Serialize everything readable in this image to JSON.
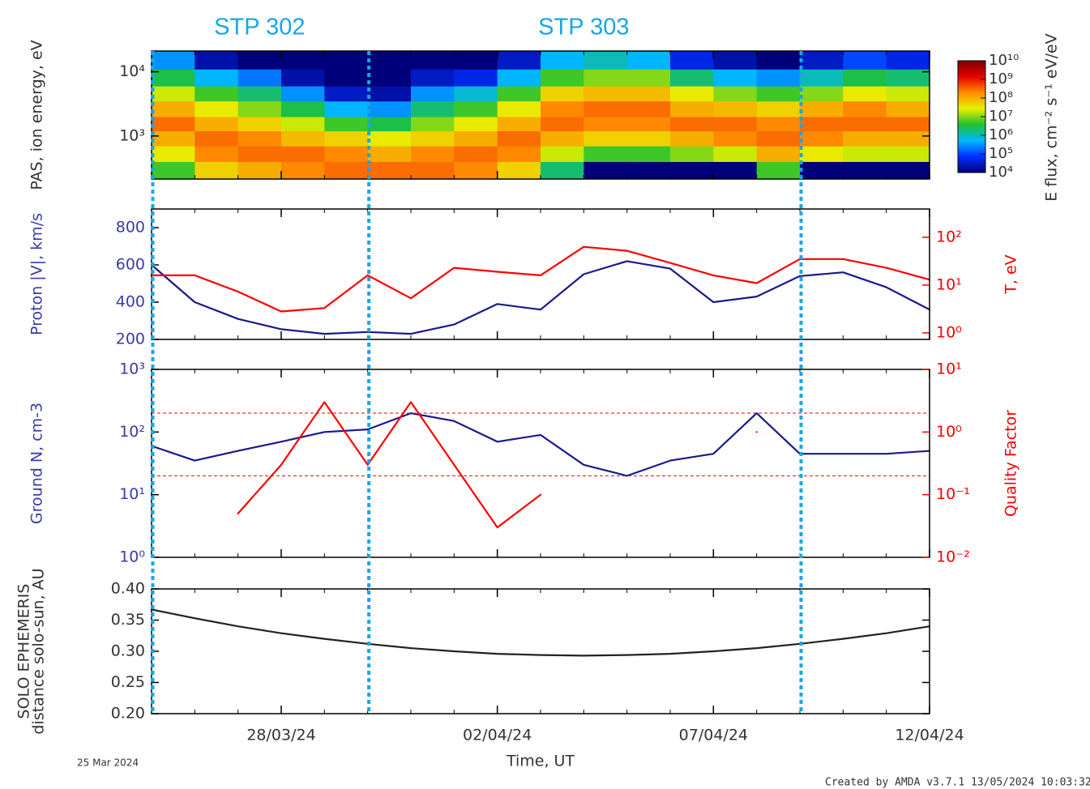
{
  "time_axis": {
    "label": "Time, UT",
    "start_label": "25 Mar 2024",
    "credit": "Created by AMDA v3.7.1 13/05/2024 10:03:32",
    "xlim": [
      "2024-03-25",
      "2024-04-12"
    ],
    "xticks": [
      {
        "value": "2024-03-28",
        "label": "28/03/24"
      },
      {
        "value": "2024-04-02",
        "label": "02/04/24"
      },
      {
        "value": "2024-04-07",
        "label": "07/04/24"
      },
      {
        "value": "2024-04-12",
        "label": "12/04/24"
      }
    ],
    "x": [
      "2024-03-25",
      "2024-03-26",
      "2024-03-27",
      "2024-03-28",
      "2024-03-29",
      "2024-03-30",
      "2024-03-31",
      "2024-04-01",
      "2024-04-02",
      "2024-04-03",
      "2024-04-04",
      "2024-04-05",
      "2024-04-06",
      "2024-04-07",
      "2024-04-08",
      "2024-04-09",
      "2024-04-10",
      "2024-04-11",
      "2024-04-12"
    ],
    "boundaries": [
      "2024-03-25",
      "2024-03-30",
      "2024-04-09"
    ],
    "boundary_color": "#19a6e6",
    "segments": [
      {
        "label": "STP 302"
      },
      {
        "label": "STP 303"
      }
    ]
  },
  "chart_data": [
    {
      "type": "heatmap",
      "ylabel": "PAS, ion energy, eV",
      "ylog": true,
      "ylim": [
        214,
        21000
      ],
      "yticks": [
        {
          "value": 1000,
          "label": "10³"
        },
        {
          "value": 10000,
          "label": "10⁴"
        }
      ],
      "bins": [
        214,
        400,
        700,
        1200,
        2000,
        3500,
        6000,
        11000,
        21000
      ],
      "values": [
        [
          5000000.0,
          30000000.0,
          100000000.0,
          300000000.0,
          100000000.0,
          20000000.0,
          3000000.0,
          300000.0
        ],
        [
          50000000.0,
          200000000.0,
          300000000.0,
          100000000.0,
          30000000.0,
          5000000.0,
          500000.0,
          20000.0
        ],
        [
          100000000.0,
          300000000.0,
          200000000.0,
          50000000.0,
          10000000.0,
          2000000.0,
          200000.0,
          10000.0
        ],
        [
          200000000.0,
          300000000.0,
          80000000.0,
          20000000.0,
          3000000.0,
          300000.0,
          20000.0,
          10000.0
        ],
        [
          300000000.0,
          200000000.0,
          50000000.0,
          5000000.0,
          500000.0,
          30000.0,
          10000.0,
          10000.0
        ],
        [
          300000000.0,
          100000000.0,
          30000000.0,
          3000000.0,
          300000.0,
          20000.0,
          10000.0,
          10000.0
        ],
        [
          300000000.0,
          200000000.0,
          50000000.0,
          10000000.0,
          2000000.0,
          300000.0,
          30000.0,
          10000.0
        ],
        [
          200000000.0,
          300000000.0,
          100000000.0,
          30000000.0,
          5000000.0,
          800000.0,
          50000.0,
          10000.0
        ],
        [
          50000000.0,
          200000000.0,
          300000000.0,
          100000000.0,
          30000000.0,
          5000000.0,
          500000.0,
          30000.0
        ],
        [
          2000000.0,
          20000000.0,
          100000000.0,
          300000000.0,
          200000000.0,
          50000000.0,
          5000000.0,
          500000.0
        ],
        [
          10000.0,
          5000000.0,
          50000000.0,
          200000000.0,
          300000000.0,
          80000000.0,
          10000000.0,
          1000000.0
        ],
        [
          10000.0,
          5000000.0,
          50000000.0,
          200000000.0,
          300000000.0,
          80000000.0,
          10000000.0,
          500000.0
        ],
        [
          10000.0,
          10000000.0,
          100000000.0,
          300000000.0,
          100000000.0,
          30000000.0,
          2000000.0,
          50000.0
        ],
        [
          10000.0,
          20000000.0,
          200000000.0,
          300000000.0,
          80000000.0,
          10000000.0,
          500000.0,
          20000.0
        ],
        [
          5000000.0,
          100000000.0,
          300000000.0,
          200000000.0,
          50000000.0,
          5000000.0,
          300000.0,
          10000.0
        ],
        [
          10000.0,
          30000000.0,
          200000000.0,
          300000000.0,
          100000000.0,
          10000000.0,
          1000000.0,
          30000.0
        ],
        [
          10000.0,
          20000000.0,
          100000000.0,
          300000000.0,
          200000000.0,
          30000000.0,
          3000000.0,
          100000.0
        ],
        [
          10000.0,
          20000000.0,
          100000000.0,
          300000000.0,
          100000000.0,
          20000000.0,
          2000000.0,
          50000.0
        ]
      ],
      "zlim": [
        10000.0,
        10000000000.0
      ],
      "zticks": [
        {
          "value": 10000.0,
          "label": "10⁴"
        },
        {
          "value": 100000.0,
          "label": "10⁵"
        },
        {
          "value": 1000000.0,
          "label": "10⁶"
        },
        {
          "value": 10000000.0,
          "label": "10⁷"
        },
        {
          "value": 100000000.0,
          "label": "10⁸"
        },
        {
          "value": 1000000000.0,
          "label": "10⁹"
        },
        {
          "value": 10000000000.0,
          "label": "10¹⁰"
        }
      ],
      "zlabel": "E flux, cm⁻² s⁻¹ eV/eV",
      "colormap": [
        "#00007a",
        "#0030ff",
        "#00b8ff",
        "#20c030",
        "#e8f000",
        "#ff8c00",
        "#e80000",
        "#7a0000"
      ]
    },
    {
      "type": "line",
      "ylabel": "Proton |V|, km/s",
      "y2label": "T, eV",
      "ylim": [
        200,
        900
      ],
      "yticks": [
        200,
        400,
        600,
        800
      ],
      "y2log": true,
      "y2lim": [
        0.73,
        390
      ],
      "y2ticks": [
        {
          "value": 1,
          "label": "10⁰"
        },
        {
          "value": 10,
          "label": "10¹"
        },
        {
          "value": 100,
          "label": "10²"
        }
      ],
      "series": [
        {
          "color": "#1a1a8c",
          "values": [
            600,
            400,
            310,
            255,
            230,
            240,
            230,
            280,
            390,
            360,
            550,
            620,
            580,
            400,
            430,
            540,
            560,
            480,
            360
          ]
        },
        {
          "color": "#ff0000",
          "axis": "y2",
          "values": [
            16,
            16,
            7.3,
            2.8,
            3.3,
            16,
            5.3,
            23,
            19,
            16,
            63,
            52,
            29,
            16,
            11,
            35,
            35,
            23,
            13
          ]
        }
      ]
    },
    {
      "type": "line",
      "ylabel": "Ground N, cm-3",
      "y2label": "Quality Factor",
      "ylog": true,
      "ylim": [
        1,
        1000
      ],
      "yticks": [
        {
          "value": 1,
          "label": "10⁰"
        },
        {
          "value": 10,
          "label": "10¹"
        },
        {
          "value": 100,
          "label": "10²"
        },
        {
          "value": 1000,
          "label": "10³"
        }
      ],
      "y2log": true,
      "y2lim": [
        0.01,
        10
      ],
      "y2ticks": [
        {
          "value": 0.01,
          "label": "10⁻²"
        },
        {
          "value": 0.1,
          "label": "10⁻¹"
        },
        {
          "value": 1,
          "label": "10⁰"
        },
        {
          "value": 10,
          "label": "10¹"
        }
      ],
      "y2_lines": [
        0.2,
        2
      ],
      "series": [
        {
          "color": "#1a1a8c",
          "values": [
            60,
            35,
            50,
            70,
            100,
            110,
            200,
            150,
            70,
            90,
            30,
            20,
            35,
            45,
            200,
            45,
            45,
            45,
            50
          ]
        },
        {
          "color": "#ff0000",
          "axis": "y2",
          "values": [
            null,
            null,
            0.05,
            0.3,
            3,
            0.3,
            3,
            0.3,
            0.03,
            0.1,
            null,
            null,
            null,
            null,
            1,
            null,
            null,
            null,
            null
          ]
        }
      ]
    },
    {
      "type": "line",
      "ylabel": [
        "SOLO EPHEMERIS",
        "distance solo-sun, AU"
      ],
      "ylim": [
        0.2,
        0.4
      ],
      "yticks": [
        {
          "value": 0.2,
          "label": "0.20"
        },
        {
          "value": 0.25,
          "label": "0.25"
        },
        {
          "value": 0.3,
          "label": "0.30"
        },
        {
          "value": 0.35,
          "label": "0.35"
        },
        {
          "value": 0.4,
          "label": "0.40"
        }
      ],
      "series": [
        {
          "color": "#222222",
          "values": [
            0.367,
            0.353,
            0.34,
            0.329,
            0.32,
            0.312,
            0.305,
            0.3,
            0.296,
            0.294,
            0.293,
            0.294,
            0.296,
            0.3,
            0.305,
            0.312,
            0.32,
            0.329,
            0.34
          ]
        }
      ]
    }
  ]
}
